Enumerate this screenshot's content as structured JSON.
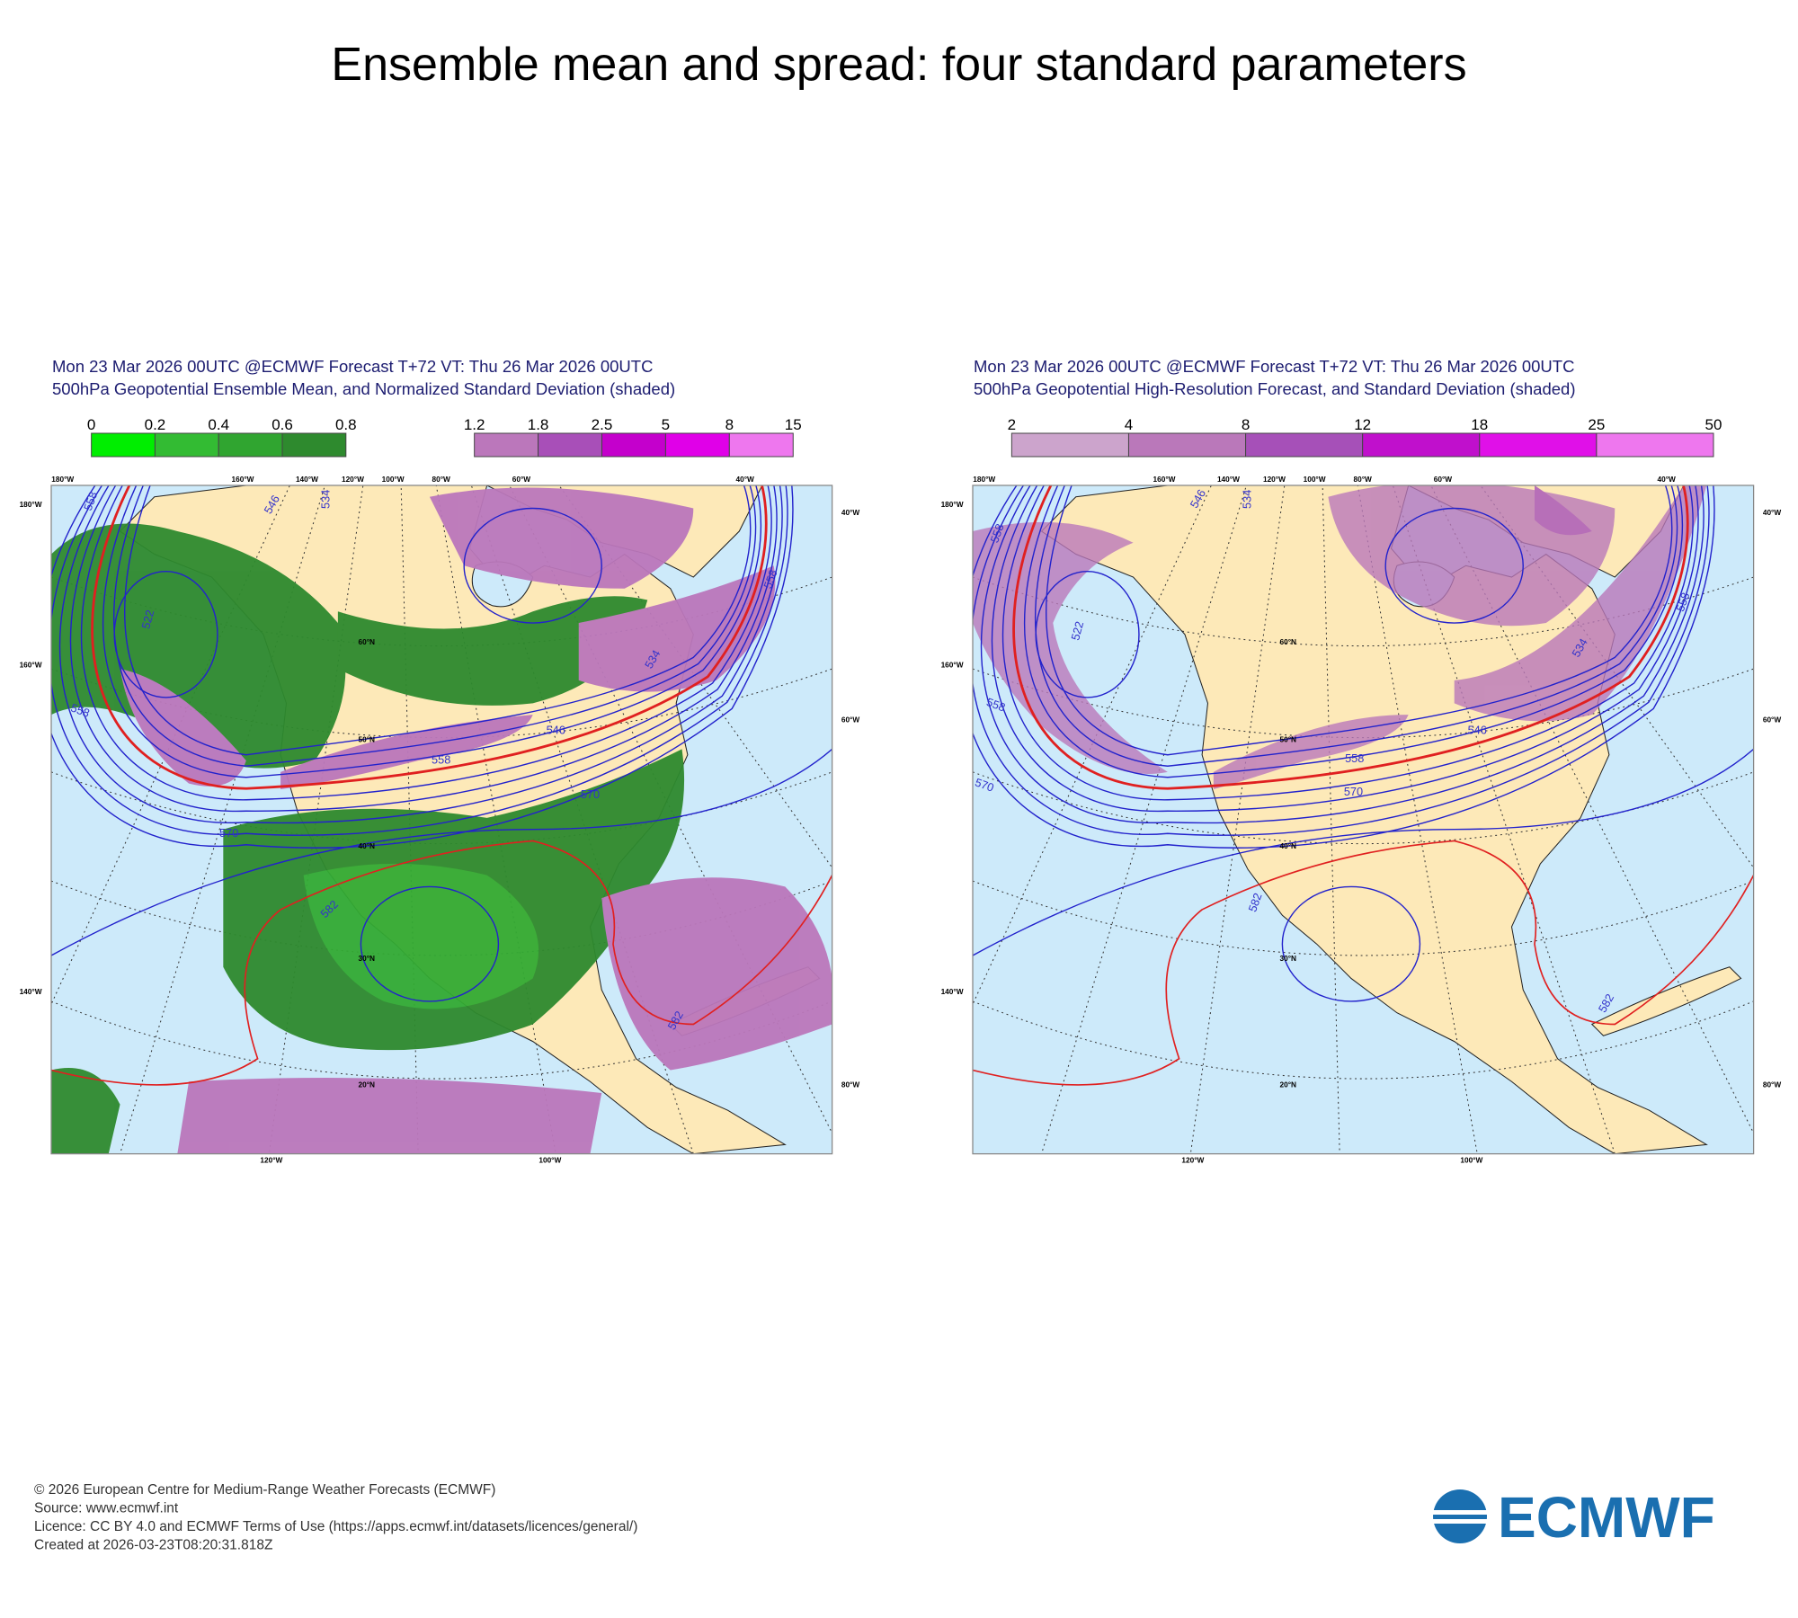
{
  "title": "Ensemble mean and spread: four standard parameters",
  "panels": [
    {
      "header": [
        "Mon 23 Mar 2026 00UTC @ECMWF Forecast T+72 VT: Thu 26 Mar 2026 00UTC",
        "500hPa Geopotential Ensemble Mean, and Normalized Standard Deviation (shaded)"
      ],
      "colorbars": [
        {
          "labels": [
            "0",
            "0.2",
            "0.4",
            "0.6",
            "0.8"
          ],
          "colors": [
            "#00ee00",
            "#33bb33",
            "#30a530",
            "#2e8a2e"
          ]
        },
        {
          "labels": [
            "1.2",
            "1.8",
            "2.5",
            "5",
            "8",
            "15"
          ],
          "colors": [
            "#bb77bb",
            "#a84fb8",
            "#c400cc",
            "#e000e8",
            "#ee77ee"
          ]
        }
      ],
      "contour_labels": [
        "558",
        "546",
        "534",
        "522",
        "558",
        "546",
        "558",
        "570",
        "570",
        "582",
        "534",
        "558",
        "582"
      ],
      "map_labels": [
        "180°W",
        "160°W",
        "140°W",
        "120°W",
        "100°W",
        "80°W",
        "60°W",
        "40°W",
        "180°W",
        "160°W",
        "140°W",
        "40°W",
        "60°W",
        "80°W",
        "120°W",
        "100°W",
        "60°N",
        "50°N",
        "40°N",
        "30°N",
        "20°N"
      ]
    },
    {
      "header": [
        "Mon 23 Mar 2026 00UTC @ECMWF Forecast T+72 VT: Thu 26 Mar 2026 00UTC",
        "500hPa Geopotential High-Resolution Forecast, and Standard Deviation (shaded)"
      ],
      "colorbars": [
        {
          "labels": [
            "2",
            "4",
            "8",
            "12",
            "18",
            "25",
            "50"
          ],
          "colors": [
            "#cca4cc",
            "#ba78ba",
            "#a650b8",
            "#c010cc",
            "#e010e8",
            "#ee77ee"
          ]
        }
      ],
      "contour_labels": [
        "558",
        "546",
        "534",
        "522",
        "558",
        "546",
        "558",
        "570",
        "570",
        "582",
        "534",
        "558",
        "582"
      ],
      "map_labels": [
        "180°W",
        "160°W",
        "140°W",
        "120°W",
        "100°W",
        "80°W",
        "60°W",
        "40°W",
        "180°W",
        "160°W",
        "140°W",
        "40°W",
        "60°W",
        "80°W",
        "120°W",
        "100°W",
        "60°N",
        "50°N",
        "40°N",
        "30°N",
        "20°N"
      ]
    }
  ],
  "footer": [
    "© 2026 European Centre for Medium-Range Weather Forecasts (ECMWF)",
    "Source: www.ecmwf.int",
    "Licence: CC BY 4.0 and ECMWF Terms of Use (https://apps.ecmwf.int/datasets/licences/general/)",
    "Created at 2026-03-23T08:20:31.818Z"
  ],
  "logo": "ECMWF"
}
